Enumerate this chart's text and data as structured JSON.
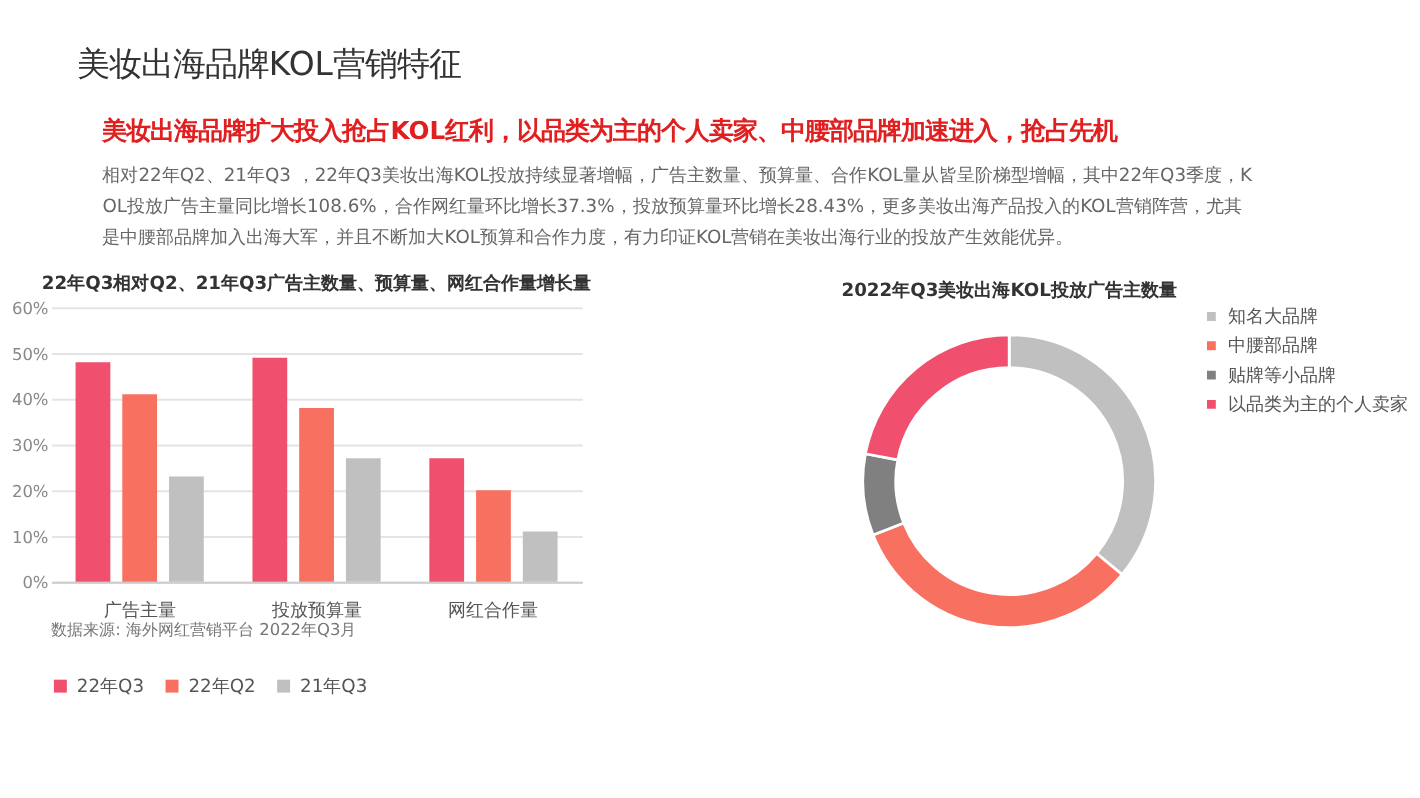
{
  "chart_data": [
    {
      "type": "bar",
      "title": "22年Q3相对Q2、21年Q3广告主数量、预算量、网红合作量增长量",
      "categories": [
        "广告主量",
        "投放预算量",
        "网红合作量"
      ],
      "series": [
        {
          "name": "22年Q3",
          "color": "#f0506e",
          "values": [
            48,
            49,
            27
          ]
        },
        {
          "name": "22年Q2",
          "color": "#f87060",
          "values": [
            41,
            38,
            20
          ]
        },
        {
          "name": "21年Q3",
          "color": "#c0c0c0",
          "values": [
            23,
            27,
            11
          ]
        }
      ],
      "ylim": [
        0,
        60
      ],
      "yticks": [
        {
          "value": 0,
          "label": "0%"
        },
        {
          "value": 10,
          "label": "10%"
        },
        {
          "value": 20,
          "label": "20%"
        },
        {
          "value": 30,
          "label": "30%"
        },
        {
          "value": 40,
          "label": "40%"
        },
        {
          "value": 50,
          "label": "50%"
        },
        {
          "value": 60,
          "label": "60%"
        }
      ],
      "grid": "y",
      "legend": "bottom",
      "annotations": [
        "美妆出海品牌KOL营销特征",
        "美妆出海品牌扩大投入抢占KOL红利，以品类为主的个人卖家、中腰部品牌加速进入，抢占先机",
        "相对22年Q2、21年Q3 ，22年Q3美妆出海KOL投放持续显著增幅，广告主数量、预算量、合作KOL量从皆呈阶梯型增幅，其中22年Q3季度，KOL投放广告主量同比增长108.6%，合作网红量环比增长37.3%，投放预算量环比增长28.43%，更多美妆出海产品投入的KOL营销阵营，尤其是中腰部品牌加入出海大军，并且不断加大KOL预算和合作力度，有力印证KOL营销在美妆出海行业的投放产生效能优异。",
        "数据来源: 海外网红营销平台 2022年Q3月"
      ]
    },
    {
      "type": "donut",
      "title": "2022年Q3美妆出海KOL投放广告主数量",
      "categories": [
        "知名大品牌",
        "中腰部品牌",
        "贴牌等小品牌",
        "以品类为主的个人卖家"
      ],
      "values": [
        36,
        33,
        9,
        22
      ],
      "colors": [
        "#c0c0c0",
        "#f87060",
        "#808080",
        "#f0506e"
      ],
      "legend": "right"
    }
  ]
}
